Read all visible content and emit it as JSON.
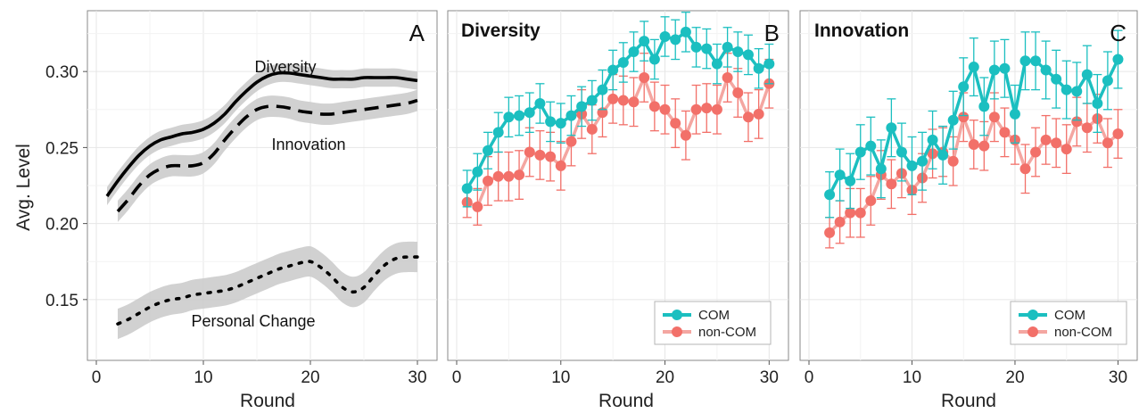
{
  "chart_data": [
    {
      "type": "line",
      "panel": "A",
      "title": "",
      "xlabel": "Round",
      "ylabel": "Avg. Level",
      "xlim": [
        0,
        31
      ],
      "ylim": [
        0.11,
        0.34
      ],
      "x_ticks": [
        0,
        10,
        20,
        30
      ],
      "y_ticks": [
        0.15,
        0.2,
        0.25,
        0.3
      ],
      "y_tick_labels": [
        "0.15",
        "0.20",
        "0.25",
        "0.30"
      ],
      "grid": true,
      "series_style": "smoothed lines with grey confidence bands",
      "series": [
        {
          "name": "Diversity",
          "style": "solid",
          "x": [
            1,
            2,
            3,
            4,
            5,
            6,
            7,
            8,
            9,
            10,
            11,
            12,
            13,
            14,
            15,
            16,
            17,
            18,
            19,
            20,
            21,
            22,
            23,
            24,
            25,
            26,
            27,
            28,
            29,
            30
          ],
          "values": [
            0.218,
            0.228,
            0.237,
            0.245,
            0.251,
            0.255,
            0.257,
            0.259,
            0.26,
            0.262,
            0.266,
            0.272,
            0.28,
            0.287,
            0.293,
            0.297,
            0.299,
            0.299,
            0.298,
            0.297,
            0.296,
            0.295,
            0.295,
            0.295,
            0.296,
            0.296,
            0.296,
            0.296,
            0.295,
            0.294
          ],
          "band": 0.006
        },
        {
          "name": "Innovation",
          "style": "dashed",
          "x": [
            2,
            3,
            4,
            5,
            6,
            7,
            8,
            9,
            10,
            11,
            12,
            13,
            14,
            15,
            16,
            17,
            18,
            19,
            20,
            21,
            22,
            23,
            24,
            25,
            26,
            27,
            28,
            29,
            30
          ],
          "values": [
            0.208,
            0.216,
            0.225,
            0.232,
            0.236,
            0.238,
            0.238,
            0.238,
            0.24,
            0.246,
            0.255,
            0.263,
            0.27,
            0.275,
            0.277,
            0.277,
            0.276,
            0.274,
            0.273,
            0.272,
            0.272,
            0.273,
            0.274,
            0.275,
            0.276,
            0.277,
            0.278,
            0.279,
            0.281
          ],
          "band": 0.007
        },
        {
          "name": "Personal Change",
          "style": "dotted",
          "x": [
            2,
            3,
            4,
            5,
            6,
            7,
            8,
            9,
            10,
            11,
            12,
            13,
            14,
            15,
            16,
            17,
            18,
            19,
            20,
            21,
            22,
            23,
            24,
            25,
            26,
            27,
            28,
            29,
            30
          ],
          "values": [
            0.134,
            0.137,
            0.141,
            0.145,
            0.148,
            0.15,
            0.151,
            0.153,
            0.154,
            0.155,
            0.156,
            0.158,
            0.161,
            0.164,
            0.167,
            0.17,
            0.172,
            0.174,
            0.175,
            0.171,
            0.165,
            0.158,
            0.155,
            0.158,
            0.166,
            0.173,
            0.177,
            0.178,
            0.178
          ],
          "band": 0.01
        }
      ]
    },
    {
      "type": "line",
      "panel": "B",
      "title": "Diversity",
      "xlabel": "Round",
      "ylabel": "",
      "xlim": [
        0,
        31
      ],
      "ylim": [
        0.11,
        0.34
      ],
      "x_ticks": [
        0,
        10,
        20,
        30
      ],
      "grid": true,
      "legend_position": "bottom-right",
      "x": [
        1,
        2,
        3,
        4,
        5,
        6,
        7,
        8,
        9,
        10,
        11,
        12,
        13,
        14,
        15,
        16,
        17,
        18,
        19,
        20,
        21,
        22,
        23,
        24,
        25,
        26,
        27,
        28,
        29,
        30
      ],
      "series": [
        {
          "name": "COM",
          "color": "#1bbfc0",
          "values": [
            0.223,
            0.234,
            0.248,
            0.26,
            0.27,
            0.271,
            0.273,
            0.279,
            0.267,
            0.266,
            0.271,
            0.277,
            0.281,
            0.288,
            0.301,
            0.306,
            0.313,
            0.32,
            0.308,
            0.323,
            0.321,
            0.326,
            0.316,
            0.315,
            0.305,
            0.316,
            0.313,
            0.311,
            0.302,
            0.305
          ],
          "err": [
            0.012,
            0.012,
            0.012,
            0.013,
            0.013,
            0.013,
            0.013,
            0.013,
            0.013,
            0.013,
            0.013,
            0.013,
            0.013,
            0.013,
            0.013,
            0.013,
            0.013,
            0.013,
            0.013,
            0.013,
            0.013,
            0.013,
            0.013,
            0.013,
            0.013,
            0.013,
            0.013,
            0.013,
            0.013,
            0.013
          ]
        },
        {
          "name": "non-COM",
          "color": "#f27069",
          "values": [
            0.214,
            0.211,
            0.228,
            0.231,
            0.231,
            0.232,
            0.247,
            0.245,
            0.244,
            0.238,
            0.254,
            0.272,
            0.262,
            0.273,
            0.282,
            0.281,
            0.28,
            0.296,
            0.277,
            0.275,
            0.266,
            0.258,
            0.275,
            0.276,
            0.275,
            0.296,
            0.286,
            0.27,
            0.272,
            0.292
          ],
          "err": [
            0.01,
            0.012,
            0.016,
            0.016,
            0.016,
            0.016,
            0.016,
            0.016,
            0.016,
            0.016,
            0.016,
            0.016,
            0.016,
            0.016,
            0.016,
            0.016,
            0.016,
            0.016,
            0.016,
            0.016,
            0.016,
            0.016,
            0.016,
            0.016,
            0.016,
            0.016,
            0.016,
            0.016,
            0.016,
            0.016
          ]
        }
      ]
    },
    {
      "type": "line",
      "panel": "C",
      "title": "Innovation",
      "xlabel": "Round",
      "ylabel": "",
      "xlim": [
        0,
        31
      ],
      "ylim": [
        0.11,
        0.34
      ],
      "x_ticks": [
        0,
        10,
        20,
        30
      ],
      "grid": true,
      "legend_position": "bottom-right",
      "x": [
        2,
        3,
        4,
        5,
        6,
        7,
        8,
        9,
        10,
        11,
        12,
        13,
        14,
        15,
        16,
        17,
        18,
        19,
        20,
        21,
        22,
        23,
        24,
        25,
        26,
        27,
        28,
        29,
        30
      ],
      "series": [
        {
          "name": "COM",
          "color": "#1bbfc0",
          "values": [
            0.219,
            0.232,
            0.228,
            0.247,
            0.251,
            0.236,
            0.263,
            0.247,
            0.238,
            0.241,
            0.255,
            0.245,
            0.268,
            0.29,
            0.303,
            0.277,
            0.301,
            0.302,
            0.272,
            0.307,
            0.307,
            0.301,
            0.295,
            0.288,
            0.287,
            0.298,
            0.279,
            0.294,
            0.308
          ],
          "err": [
            0.015,
            0.017,
            0.018,
            0.018,
            0.019,
            0.019,
            0.019,
            0.019,
            0.019,
            0.019,
            0.019,
            0.019,
            0.019,
            0.019,
            0.019,
            0.019,
            0.019,
            0.019,
            0.019,
            0.019,
            0.019,
            0.019,
            0.019,
            0.019,
            0.019,
            0.019,
            0.019,
            0.019,
            0.019
          ]
        },
        {
          "name": "non-COM",
          "color": "#f27069",
          "values": [
            0.194,
            0.201,
            0.207,
            0.207,
            0.215,
            0.232,
            0.226,
            0.233,
            0.222,
            0.23,
            0.246,
            0.247,
            0.241,
            0.27,
            0.252,
            0.251,
            0.27,
            0.26,
            0.255,
            0.236,
            0.247,
            0.255,
            0.253,
            0.249,
            0.267,
            0.263,
            0.269,
            0.253,
            0.259
          ],
          "err": [
            0.01,
            0.014,
            0.016,
            0.016,
            0.016,
            0.016,
            0.016,
            0.016,
            0.016,
            0.016,
            0.016,
            0.016,
            0.016,
            0.016,
            0.016,
            0.016,
            0.016,
            0.016,
            0.016,
            0.016,
            0.016,
            0.016,
            0.016,
            0.016,
            0.016,
            0.016,
            0.016,
            0.016,
            0.016
          ]
        }
      ]
    }
  ]
}
